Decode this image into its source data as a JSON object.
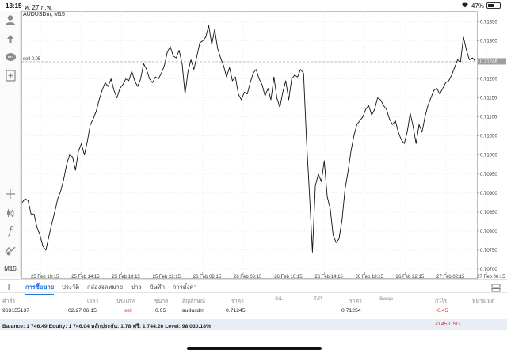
{
  "status_bar": {
    "time": "13:15",
    "date": "ศ. 27 ก.พ.",
    "battery": "47%",
    "battery_level": 0.47
  },
  "chart": {
    "symbol_title": "AUDUSDm, M15",
    "order_line_label": "sell 0.05",
    "current_price_label": "0.71246"
  },
  "toolbar": {
    "timeframe": "M15"
  },
  "chart_data": {
    "type": "line",
    "series": [
      {
        "values": [
          0.70875,
          0.70885,
          0.7088,
          0.70845,
          0.70845,
          0.7081,
          0.7079,
          0.7076,
          0.7075,
          0.70785,
          0.7082,
          0.7085,
          0.70885,
          0.70905,
          0.70935,
          0.70975,
          0.71,
          0.70995,
          0.7096,
          0.7101,
          0.7103,
          0.71,
          0.71035,
          0.7108,
          0.71095,
          0.71115,
          0.71145,
          0.7117,
          0.7119,
          0.7118,
          0.712,
          0.7117,
          0.7115,
          0.71175,
          0.71185,
          0.712,
          0.71195,
          0.7122,
          0.71195,
          0.7118,
          0.712,
          0.7124,
          0.71225,
          0.712,
          0.7119,
          0.71205,
          0.712,
          0.71215,
          0.71235,
          0.7127,
          0.71285,
          0.7126,
          0.71255,
          0.71275,
          0.7124,
          0.7116,
          0.7122,
          0.7125,
          0.71225,
          0.7126,
          0.71295,
          0.713,
          0.7131,
          0.7134,
          0.7129,
          0.7133,
          0.7128,
          0.71255,
          0.71235,
          0.71205,
          0.7123,
          0.71195,
          0.71205,
          0.7116,
          0.71145,
          0.71165,
          0.7116,
          0.7119,
          0.71215,
          0.71225,
          0.712,
          0.71185,
          0.71155,
          0.71175,
          0.71145,
          0.71205,
          0.7115,
          0.71125,
          0.71165,
          0.71195,
          0.71145,
          0.712,
          0.7121,
          0.71205,
          0.71225,
          0.71215,
          0.7104,
          0.709,
          0.70745,
          0.7092,
          0.7095,
          0.7093,
          0.70985,
          0.7089,
          0.7086,
          0.7079,
          0.7077,
          0.7078,
          0.7083,
          0.7091,
          0.70955,
          0.7101,
          0.7105,
          0.7108,
          0.7109,
          0.711,
          0.7112,
          0.7113,
          0.71105,
          0.7112,
          0.7115,
          0.71145,
          0.7113,
          0.7112,
          0.71095,
          0.7108,
          0.7109,
          0.7106,
          0.7104,
          0.7103,
          0.7106,
          0.7111,
          0.71075,
          0.7103,
          0.7108,
          0.7106,
          0.711,
          0.7113,
          0.7115,
          0.7117,
          0.71175,
          0.7116,
          0.71175,
          0.7119,
          0.71195,
          0.7121,
          0.7123,
          0.7125,
          0.71245,
          0.7131,
          0.71275,
          0.7125,
          0.71255,
          0.71246
        ]
      }
    ],
    "x_tick_labels": [
      "25 Feb 10:15",
      "25 Feb 14:15",
      "25 Feb 18:15",
      "25 Feb 22:15",
      "26 Feb 02:15",
      "26 Feb 06:15",
      "26 Feb 10:15",
      "26 Feb 14:15",
      "26 Feb 18:15",
      "26 Feb 22:15",
      "27 Feb 02:15",
      "27 Feb 06:15"
    ],
    "y_tick_labels": [
      "0.71350",
      "0.71300",
      "0.71200",
      "0.71150",
      "0.71100",
      "0.71050",
      "0.71000",
      "0.70950",
      "0.70900",
      "0.70850",
      "0.70800",
      "0.70750",
      "0.70700"
    ],
    "ylim": [
      0.70675,
      0.71378
    ],
    "order_level": 0.71245,
    "current_price": 0.71246,
    "grid": true
  },
  "tabs": [
    "การซื้อขาย",
    "ประวัติ",
    "กล่องจดหมาย",
    "ข่าว",
    "บันทึก",
    "การตั้งค่า"
  ],
  "table": {
    "headers": {
      "order": "คำสั่ง",
      "time": "เวลา",
      "type": "ประเภท",
      "size": "ขนาด",
      "symbol": "สัญลักษณ์",
      "price": "ราคา",
      "sl": "S/L",
      "tp": "T/P",
      "price2": "ราคา",
      "swap": "Swap",
      "profit": "กำไร",
      "note": "หมายเหตุ"
    },
    "row": {
      "order": "963155137",
      "time": "02.27 06:15",
      "type": "sell",
      "size": "0.05",
      "symbol": "audusdm",
      "price": "0.71245",
      "price2": "0.71254",
      "profit": "-0.45"
    }
  },
  "balance": {
    "text": "Balance: 1 746.49 Equity: 1 746.04 หลักประกัน: 1.78 ฟรี: 1 744.26 Level: 98 030.18%",
    "total": "-0.45  USD"
  },
  "colors": {
    "accent": "#1a73e8",
    "loss": "#d32f2f",
    "price_tag": "#9e9e9e"
  }
}
